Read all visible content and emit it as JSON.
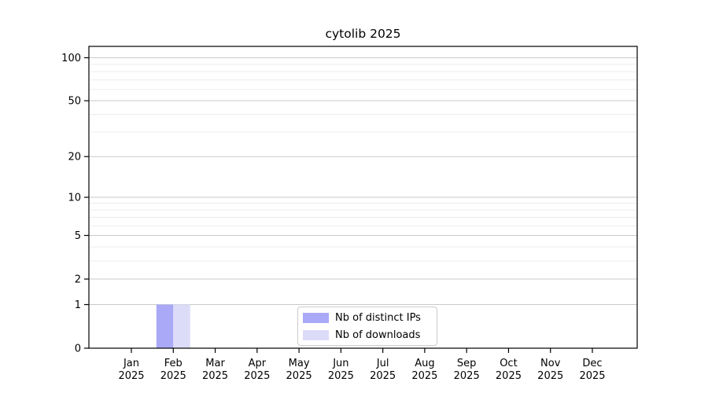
{
  "title": "cytolib 2025",
  "chart_data": {
    "type": "bar",
    "title": "cytolib 2025",
    "yscale": "log1p",
    "ylim": [
      0,
      120
    ],
    "grid": "horizontal",
    "legend_position": "inside-bottom-center",
    "y_major_ticks": [
      0,
      1,
      2,
      5,
      10,
      20,
      50,
      100
    ],
    "y_minor_ticks": [
      3,
      4,
      6,
      7,
      8,
      9,
      30,
      40,
      60,
      70,
      80,
      90
    ],
    "x_ticks": [
      {
        "month": "Jan",
        "year": "2025"
      },
      {
        "month": "Feb",
        "year": "2025"
      },
      {
        "month": "Mar",
        "year": "2025"
      },
      {
        "month": "Apr",
        "year": "2025"
      },
      {
        "month": "May",
        "year": "2025"
      },
      {
        "month": "Jun",
        "year": "2025"
      },
      {
        "month": "Jul",
        "year": "2025"
      },
      {
        "month": "Aug",
        "year": "2025"
      },
      {
        "month": "Sep",
        "year": "2025"
      },
      {
        "month": "Oct",
        "year": "2025"
      },
      {
        "month": "Nov",
        "year": "2025"
      },
      {
        "month": "Dec",
        "year": "2025"
      }
    ],
    "series": [
      {
        "name": "Nb of distinct IPs",
        "color": "#a9a9f7",
        "values": [
          0,
          1,
          0,
          0,
          0,
          0,
          0,
          0,
          0,
          0,
          0,
          0
        ]
      },
      {
        "name": "Nb of downloads",
        "color": "#dcdcf9",
        "values": [
          0,
          1,
          0,
          0,
          0,
          0,
          0,
          0,
          0,
          0,
          0,
          0
        ]
      }
    ],
    "colors": {
      "major_grid": "#c9c9c9",
      "minor_grid": "#ececec",
      "axis": "#000000",
      "background": "#ffffff",
      "legend_border": "#cccccc",
      "text": "#000000"
    }
  }
}
